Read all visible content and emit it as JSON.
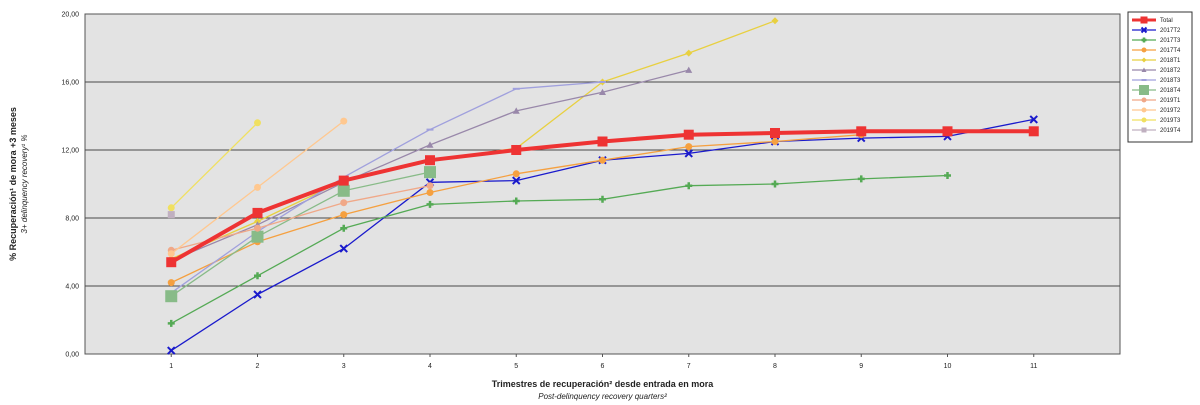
{
  "chart_data": {
    "type": "line",
    "xlabel": "Trimestres de recuperación² desde entrada en mora",
    "xlabel_en": "Post-delinquency recovery quarters²",
    "ylabel": "% Recuperación¹ de mora +3 meses",
    "ylabel_en": "3+ delinquency recovery¹ %",
    "ylim": [
      0,
      20
    ],
    "xlim": [
      0,
      12
    ],
    "y_ticks": [
      "0,00",
      "4,00",
      "8,00",
      "12,00",
      "16,00",
      "20,00"
    ],
    "x_ticks": [
      "1",
      "2",
      "3",
      "4",
      "5",
      "6",
      "7",
      "8",
      "9",
      "10",
      "11"
    ],
    "grid": true,
    "legend_position": "top-right",
    "series": [
      {
        "name": "Total",
        "color": "#ee3333",
        "marker": "square",
        "x": [
          1,
          2,
          3,
          4,
          5,
          6,
          7,
          8,
          9,
          10,
          11
        ],
        "values": [
          5.4,
          8.3,
          10.2,
          11.4,
          12.0,
          12.5,
          12.9,
          13.0,
          13.1,
          13.1,
          13.1
        ]
      },
      {
        "name": "2017T2",
        "color": "#1a1acc",
        "marker": "x",
        "x": [
          1,
          2,
          3,
          4,
          5,
          6,
          7,
          8,
          9,
          10,
          11
        ],
        "values": [
          0.2,
          3.5,
          6.2,
          10.1,
          10.2,
          11.4,
          11.8,
          12.5,
          12.7,
          12.8,
          13.8
        ]
      },
      {
        "name": "2017T3",
        "color": "#55aa55",
        "marker": "plus",
        "x": [
          1,
          2,
          3,
          4,
          5,
          6,
          7,
          8,
          9,
          10
        ],
        "values": [
          1.8,
          4.6,
          7.4,
          8.8,
          9.0,
          9.1,
          9.9,
          10.0,
          10.3,
          10.5
        ]
      },
      {
        "name": "2017T4",
        "color": "#f5a040",
        "marker": "circle",
        "x": [
          1,
          2,
          3,
          4,
          5,
          6,
          7,
          8,
          9
        ],
        "values": [
          4.2,
          6.6,
          8.2,
          9.5,
          10.6,
          11.4,
          12.2,
          12.5,
          12.9
        ]
      },
      {
        "name": "2018T1",
        "color": "#e8d040",
        "marker": "diamond",
        "x": [
          1,
          2,
          3,
          4,
          5,
          6,
          7,
          8
        ],
        "values": [
          5.6,
          7.8,
          10.2,
          11.4,
          12.1,
          16.0,
          17.7,
          19.6
        ]
      },
      {
        "name": "2018T2",
        "color": "#9988aa",
        "marker": "triangle",
        "x": [
          1,
          2,
          3,
          4,
          5,
          6,
          7
        ],
        "values": [
          5.5,
          7.6,
          10.1,
          12.3,
          14.3,
          15.4,
          16.7
        ]
      },
      {
        "name": "2018T3",
        "color": "#a0a0dd",
        "marker": "dash",
        "x": [
          1,
          2,
          3,
          4,
          5,
          6
        ],
        "values": [
          3.6,
          7.2,
          10.4,
          13.2,
          15.6,
          16.0
        ]
      },
      {
        "name": "2018T4",
        "color": "#88bb88",
        "marker": "square",
        "x": [
          1,
          2,
          3,
          4
        ],
        "values": [
          3.4,
          6.9,
          9.6,
          10.7
        ]
      },
      {
        "name": "2019T1",
        "color": "#f0a888",
        "marker": "circle",
        "x": [
          1,
          2,
          3,
          4
        ],
        "values": [
          6.1,
          7.4,
          8.9,
          9.9
        ]
      },
      {
        "name": "2019T2",
        "color": "#ffc890",
        "marker": "circle",
        "x": [
          1,
          2,
          3
        ],
        "values": [
          5.9,
          9.8,
          13.7
        ]
      },
      {
        "name": "2019T3",
        "color": "#f0e060",
        "marker": "circle",
        "x": [
          1,
          2
        ],
        "values": [
          8.6,
          13.6
        ]
      },
      {
        "name": "2019T4",
        "color": "#c0b0c0",
        "marker": "square",
        "x": [
          1
        ],
        "values": [
          8.2
        ]
      }
    ]
  }
}
